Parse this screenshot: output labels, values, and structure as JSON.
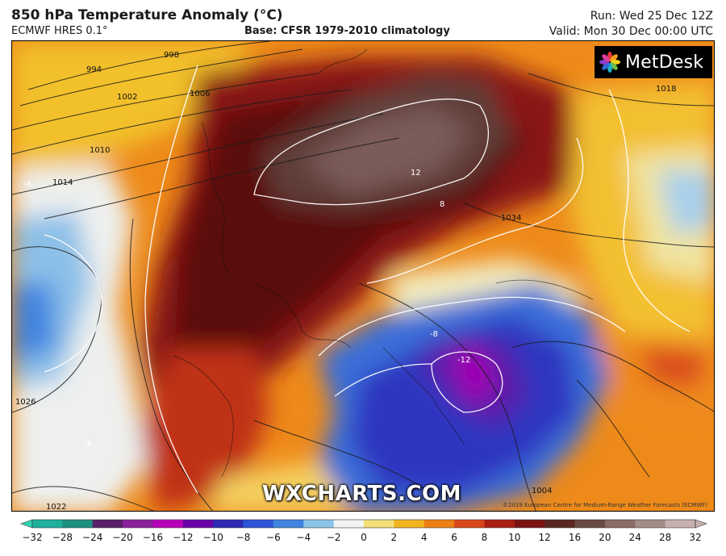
{
  "header": {
    "title": "850 hPa Temperature Anomaly (°C)",
    "model": "ECMWF HRES 0.1°",
    "base": "Base: CFSR 1979-2010 climatology",
    "run": "Run: Wed 25 Dec 12Z",
    "valid": "Valid: Mon 30 Dec 00:00 UTC"
  },
  "branding": {
    "logo_text": "MetDesk",
    "watermark": "WXCHARTS.COM",
    "copyright": "©2019 European Centre for Medium-Range Weather Forecasts (ECMWF)"
  },
  "isobar_labels": [
    "994",
    "998",
    "1002",
    "1006",
    "1010",
    "1014",
    "1018",
    "1026",
    "1034",
    "1022",
    "1004"
  ],
  "anomaly_labels": [
    "12",
    "8",
    "-4",
    "-8",
    "-12",
    "4"
  ],
  "colorbar": {
    "ticks": [
      "−32",
      "−28",
      "−24",
      "−20",
      "−16",
      "−12",
      "−10",
      "−8",
      "−6",
      "−4",
      "−2",
      "0",
      "2",
      "4",
      "6",
      "8",
      "10",
      "12",
      "16",
      "20",
      "24",
      "28",
      "32"
    ],
    "colors": [
      "#2fd6b5",
      "#1fb09e",
      "#1c8f7f",
      "#5a1f6a",
      "#8c1f9c",
      "#b800b8",
      "#6a00a8",
      "#2d2bb5",
      "#2e55d8",
      "#3f84e0",
      "#8cc4ea",
      "#f2f4f2",
      "#f3e07a",
      "#f3b41f",
      "#ee7f15",
      "#d9461a",
      "#aa1e14",
      "#7a1212",
      "#5a2620",
      "#6a4a44",
      "#8a6c66",
      "#a48c88",
      "#c8b0ae"
    ]
  }
}
